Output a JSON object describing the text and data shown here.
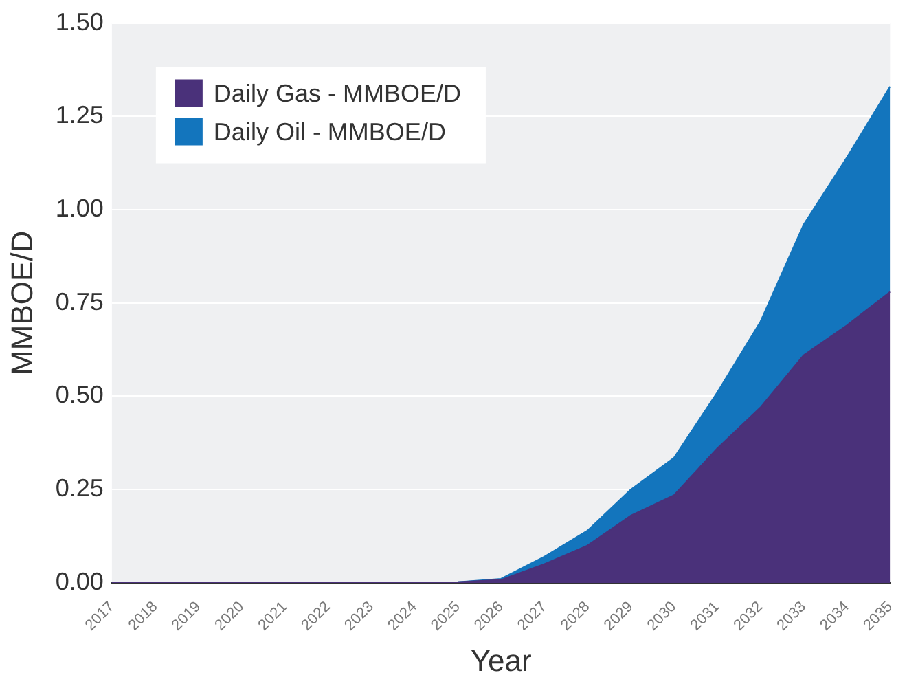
{
  "chart_data": {
    "type": "area",
    "stacked": true,
    "xlabel": "Year",
    "ylabel": "MMBOE/D",
    "categories": [
      "2017",
      "2018",
      "2019",
      "2020",
      "2021",
      "2022",
      "2023",
      "2024",
      "2025",
      "2026",
      "2027",
      "2028",
      "2029",
      "2030",
      "2031",
      "2032",
      "2033",
      "2034",
      "2035"
    ],
    "series": [
      {
        "name": "Daily Gas - MMBOE/D",
        "color": "#4a317a",
        "values": [
          0,
          0,
          0,
          0,
          0,
          0,
          0,
          0,
          0.002,
          0.008,
          0.05,
          0.1,
          0.18,
          0.235,
          0.36,
          0.47,
          0.61,
          0.69,
          0.78
        ]
      },
      {
        "name": "Daily Oil - MMBOE/D",
        "color": "#1375bd",
        "values": [
          0,
          0,
          0,
          0,
          0,
          0,
          0,
          0,
          0,
          0.003,
          0.02,
          0.04,
          0.07,
          0.1,
          0.15,
          0.23,
          0.35,
          0.45,
          0.55
        ]
      }
    ],
    "ylim": [
      0,
      1.5
    ],
    "yticks": [
      {
        "value": 0,
        "label": "0.00"
      },
      {
        "value": 0.25,
        "label": "0.25"
      },
      {
        "value": 0.5,
        "label": "0.50"
      },
      {
        "value": 0.75,
        "label": "0.75"
      },
      {
        "value": 1,
        "label": "1.00"
      },
      {
        "value": 1.25,
        "label": "1.25"
      },
      {
        "value": 1.5,
        "label": "1.50"
      }
    ],
    "grid": "y",
    "legend": "top left"
  }
}
